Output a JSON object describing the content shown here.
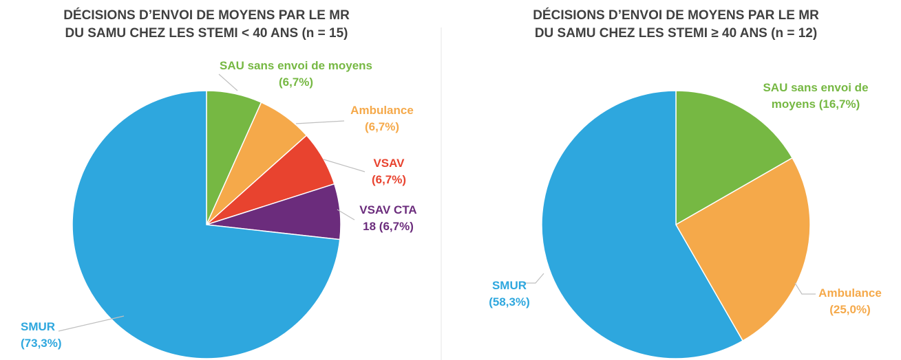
{
  "chart_data": [
    {
      "type": "pie",
      "title": [
        "DÉCISIONS D’ENVOI DE MOYENS PAR LE MR",
        "DU SAMU CHEZ LES STEMI < 40 ANS (n = 15)"
      ],
      "categories": [
        "SAU sans envoi de moyens",
        "Ambulance",
        "VSAV",
        "VSAV CTA 18",
        "SMUR"
      ],
      "values": [
        6.7,
        6.7,
        6.7,
        6.7,
        73.3
      ],
      "value_labels": [
        "(6,7%)",
        "(6,7%)",
        "(6,7%)",
        "(6,7%)",
        "(73,3%)"
      ],
      "colors": [
        "#76b843",
        "#f5a94a",
        "#e8432f",
        "#6b2c7c",
        "#2ea7de"
      ]
    },
    {
      "type": "pie",
      "title": [
        "DÉCISIONS D’ENVOI DE MOYENS PAR LE MR",
        "DU SAMU CHEZ LES STEMI ≥ 40 ANS (n = 12)"
      ],
      "categories": [
        "SAU sans envoi de moyens",
        "Ambulance",
        "SMUR"
      ],
      "values": [
        16.7,
        25.0,
        58.3
      ],
      "value_labels": [
        "(16,7%)",
        "(25,0%)",
        "(58,3%)"
      ],
      "colors": [
        "#76b843",
        "#f5a94a",
        "#2ea7de"
      ]
    }
  ]
}
